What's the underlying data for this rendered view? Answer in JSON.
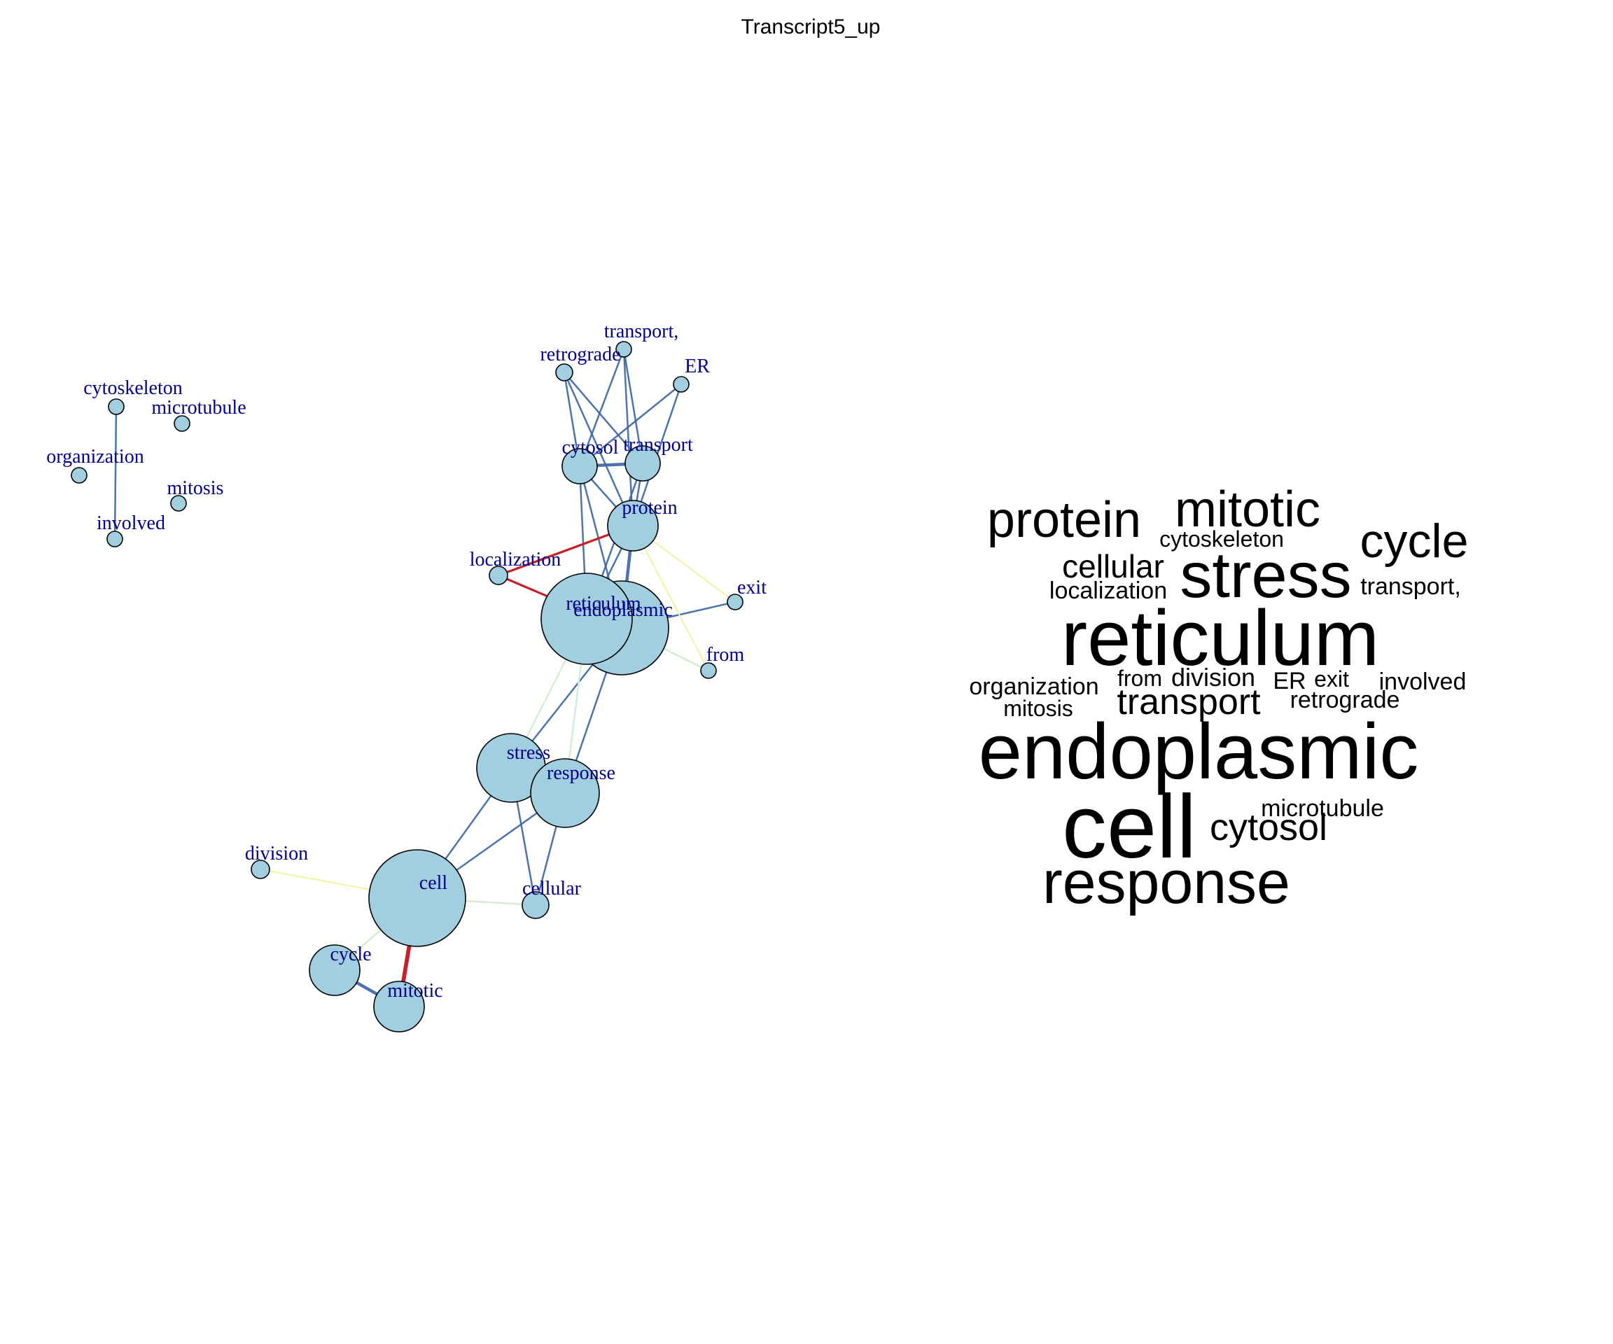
{
  "title": "Transcript5_up",
  "colors": {
    "node_fill": "#a2cfe0",
    "node_stroke": "#000000",
    "label": "#00008b",
    "edge_blue": "#3a64a6",
    "edge_red": "#c8202a",
    "edge_yellow": "#f2f5a8",
    "edge_mint": "#d6ecd4",
    "cloud_text": "#000000"
  },
  "network": {
    "nodes": [
      {
        "id": "cytoskeleton",
        "label": "cytoskeleton"
      },
      {
        "id": "microtubule",
        "label": "microtubule"
      },
      {
        "id": "organization",
        "label": "organization"
      },
      {
        "id": "mitosis",
        "label": "mitosis"
      },
      {
        "id": "involved",
        "label": "involved"
      },
      {
        "id": "transport_comma",
        "label": "transport,"
      },
      {
        "id": "retrograde",
        "label": "retrograde"
      },
      {
        "id": "er",
        "label": "ER"
      },
      {
        "id": "cytosol",
        "label": "cytosol"
      },
      {
        "id": "transport",
        "label": "transport"
      },
      {
        "id": "protein",
        "label": "protein"
      },
      {
        "id": "localization",
        "label": "localization"
      },
      {
        "id": "exit",
        "label": "exit"
      },
      {
        "id": "endoplasmic",
        "label": "endoplasmic"
      },
      {
        "id": "reticulum",
        "label": "reticulum"
      },
      {
        "id": "from",
        "label": "from"
      },
      {
        "id": "stress",
        "label": "stress"
      },
      {
        "id": "response",
        "label": "response"
      },
      {
        "id": "division",
        "label": "division"
      },
      {
        "id": "cell",
        "label": "cell"
      },
      {
        "id": "cellular",
        "label": "cellular"
      },
      {
        "id": "cycle",
        "label": "cycle"
      },
      {
        "id": "mitotic",
        "label": "mitotic"
      }
    ],
    "edges": [
      {
        "source": "cytoskeleton",
        "target": "involved",
        "color": "blue"
      },
      {
        "source": "retrograde",
        "target": "cytosol",
        "color": "blue"
      },
      {
        "source": "retrograde",
        "target": "transport",
        "color": "blue"
      },
      {
        "source": "retrograde",
        "target": "protein",
        "color": "blue"
      },
      {
        "source": "transport_comma",
        "target": "cytosol",
        "color": "blue"
      },
      {
        "source": "transport_comma",
        "target": "transport",
        "color": "blue"
      },
      {
        "source": "transport_comma",
        "target": "protein",
        "color": "blue"
      },
      {
        "source": "er",
        "target": "cytosol",
        "color": "blue"
      },
      {
        "source": "er",
        "target": "protein",
        "color": "blue"
      },
      {
        "source": "cytosol",
        "target": "transport",
        "color": "blue"
      },
      {
        "source": "cytosol",
        "target": "protein",
        "color": "blue"
      },
      {
        "source": "cytosol",
        "target": "reticulum",
        "color": "blue"
      },
      {
        "source": "cytosol",
        "target": "endoplasmic",
        "color": "blue"
      },
      {
        "source": "transport",
        "target": "protein",
        "color": "blue"
      },
      {
        "source": "transport",
        "target": "reticulum",
        "color": "blue"
      },
      {
        "source": "protein",
        "target": "reticulum",
        "color": "blue"
      },
      {
        "source": "protein",
        "target": "endoplasmic",
        "color": "blue"
      },
      {
        "source": "localization",
        "target": "protein",
        "color": "red"
      },
      {
        "source": "localization",
        "target": "endoplasmic",
        "color": "red"
      },
      {
        "source": "exit",
        "target": "endoplasmic",
        "color": "blue"
      },
      {
        "source": "exit",
        "target": "protein",
        "color": "yellow"
      },
      {
        "source": "from",
        "target": "endoplasmic",
        "color": "mint"
      },
      {
        "source": "from",
        "target": "protein",
        "color": "yellow"
      },
      {
        "source": "reticulum",
        "target": "endoplasmic",
        "color": "blue"
      },
      {
        "source": "stress",
        "target": "reticulum",
        "color": "mint"
      },
      {
        "source": "stress",
        "target": "endoplasmic",
        "color": "blue"
      },
      {
        "source": "response",
        "target": "reticulum",
        "color": "mint"
      },
      {
        "source": "response",
        "target": "endoplasmic",
        "color": "blue"
      },
      {
        "source": "stress",
        "target": "response",
        "color": "blue"
      },
      {
        "source": "stress",
        "target": "cell",
        "color": "blue"
      },
      {
        "source": "response",
        "target": "cell",
        "color": "blue"
      },
      {
        "source": "stress",
        "target": "cellular",
        "color": "blue"
      },
      {
        "source": "response",
        "target": "cellular",
        "color": "blue"
      },
      {
        "source": "cell",
        "target": "cellular",
        "color": "mint"
      },
      {
        "source": "division",
        "target": "cell",
        "color": "yellow"
      },
      {
        "source": "cell",
        "target": "mitotic",
        "color": "red"
      },
      {
        "source": "cell",
        "target": "cycle",
        "color": "mint"
      },
      {
        "source": "cycle",
        "target": "mitotic",
        "color": "blue"
      }
    ]
  },
  "wordcloud": {
    "words": [
      {
        "text": "protein"
      },
      {
        "text": "mitotic"
      },
      {
        "text": "cytoskeleton"
      },
      {
        "text": "cycle"
      },
      {
        "text": "cellular"
      },
      {
        "text": "stress"
      },
      {
        "text": "localization"
      },
      {
        "text": "transport,"
      },
      {
        "text": "reticulum"
      },
      {
        "text": "organization"
      },
      {
        "text": "from"
      },
      {
        "text": "division"
      },
      {
        "text": "ER"
      },
      {
        "text": "exit"
      },
      {
        "text": "involved"
      },
      {
        "text": "mitosis"
      },
      {
        "text": "transport"
      },
      {
        "text": "retrograde"
      },
      {
        "text": "endoplasmic"
      },
      {
        "text": "microtubule"
      },
      {
        "text": "cell"
      },
      {
        "text": "cytosol"
      },
      {
        "text": "response"
      }
    ]
  }
}
